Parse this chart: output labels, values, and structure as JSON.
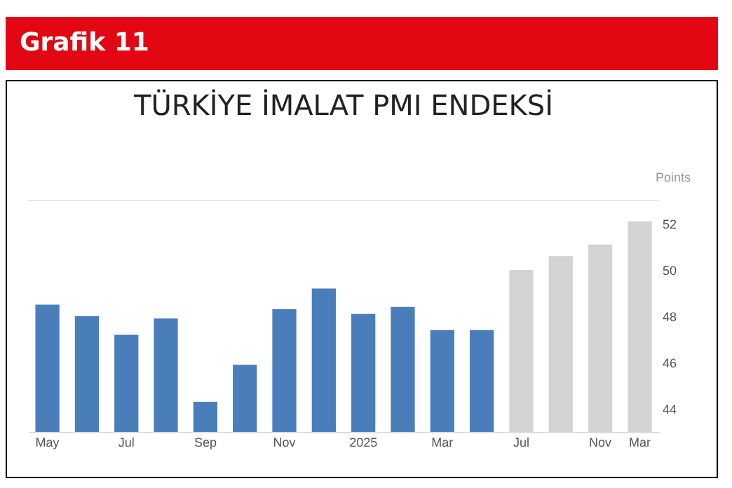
{
  "chart_data": {
    "type": "bar",
    "title": "TÜRKİYE İMALAT PMI ENDEKSİ",
    "ylabel": "Points",
    "annotations": [
      "Grafik 11"
    ],
    "categories": [
      "May",
      null,
      "Jul",
      null,
      "Sep",
      null,
      "Nov",
      null,
      "2025",
      null,
      "Mar",
      null,
      "Jul",
      null,
      "Nov",
      "Mar"
    ],
    "values": [
      48.5,
      48.0,
      47.2,
      47.9,
      44.3,
      45.9,
      48.3,
      49.2,
      48.1,
      48.4,
      47.4,
      47.4,
      50.0,
      50.6,
      51.1,
      52.1
    ],
    "colors": [
      "#4a7ebb",
      "#4a7ebb",
      "#4a7ebb",
      "#4a7ebb",
      "#4a7ebb",
      "#4a7ebb",
      "#4a7ebb",
      "#4a7ebb",
      "#4a7ebb",
      "#4a7ebb",
      "#4a7ebb",
      "#4a7ebb",
      "#d4d3d3",
      "#d4d3d3",
      "#d4d3d3",
      "#d4d3d3"
    ],
    "ylim": [
      43,
      53
    ],
    "yticks": [
      44,
      46,
      48,
      50,
      52
    ]
  }
}
